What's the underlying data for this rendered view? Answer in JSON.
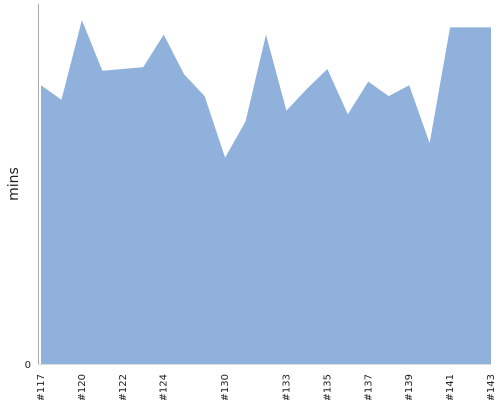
{
  "chart_data": {
    "type": "area",
    "x": [
      "#117",
      "#118",
      "#120",
      "#121",
      "#122",
      "#123",
      "#124",
      "#125",
      "#126",
      "#130",
      "#131",
      "#132",
      "#133",
      "#134",
      "#135",
      "#136",
      "#137",
      "#138",
      "#139",
      "#140",
      "#141",
      "#142",
      "#143"
    ],
    "values": [
      77,
      73,
      95,
      81,
      81.5,
      82,
      91,
      80,
      74,
      57,
      67,
      91,
      70,
      76,
      81.5,
      69,
      78,
      74,
      77,
      61,
      93,
      93,
      93
    ],
    "x_tick_labels": [
      "#117",
      "#120",
      "#122",
      "#124",
      "#130",
      "#133",
      "#135",
      "#137",
      "#139",
      "#141",
      "#143"
    ],
    "y_tick_labels": [
      "0"
    ],
    "ylim": [
      0,
      100
    ],
    "title": "",
    "xlabel": "",
    "ylabel": "mins",
    "grid": false,
    "legend": "none",
    "colors": {
      "fill": "#8fb1db",
      "axis": "#aaaaaa"
    }
  }
}
